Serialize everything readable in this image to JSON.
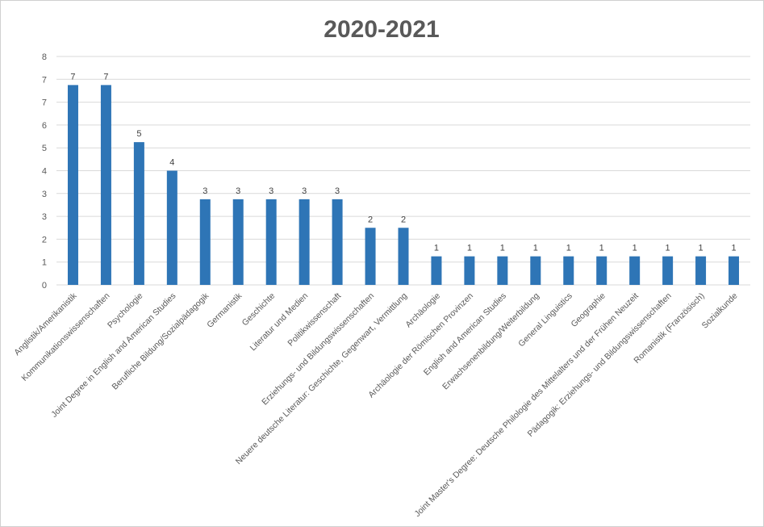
{
  "chart_data": {
    "type": "bar",
    "title": "2020-2021",
    "xlabel": "",
    "ylabel": "",
    "ylim": [
      0,
      8
    ],
    "yticks": [
      "0",
      "1",
      "2",
      "3",
      "3",
      "4",
      "5",
      "6",
      "7",
      "7",
      "8"
    ],
    "grid": true,
    "legend": "none",
    "bar_color": "#2e75b6",
    "categories": [
      "Anglistik/Amerikanistik",
      "Kommunikationswissenschaften",
      "Psychologie",
      "Joint Degree in English and American Studies",
      "Berufliche Bildung/Sozialpädagogik",
      "Germanistik",
      "Geschichte",
      "Literatur und Medien",
      "Politikwissenschaft",
      "Erziehungs- und Bildungswissenschaften",
      "Neuere deutsche Literatur: Geschichte, Gegenwart, Vermittlung",
      "Archäologie",
      "Archäologie der Römischen Provinzen",
      "English and American Studies",
      "Erwachsenenbildung/Weiterbildung",
      "General Linguistics",
      "Geographie",
      "Joint Master's Degree: Deutsche Philologie des Mittelalters und der Frühen Neuzeit",
      "Pädagogik: Erziehungs- und Bildungswissenschaften",
      "Romanistik (Französisch)",
      "Sozialkunde"
    ],
    "values": [
      7,
      7,
      5,
      4,
      3,
      3,
      3,
      3,
      3,
      2,
      2,
      1,
      1,
      1,
      1,
      1,
      1,
      1,
      1,
      1,
      1
    ]
  }
}
